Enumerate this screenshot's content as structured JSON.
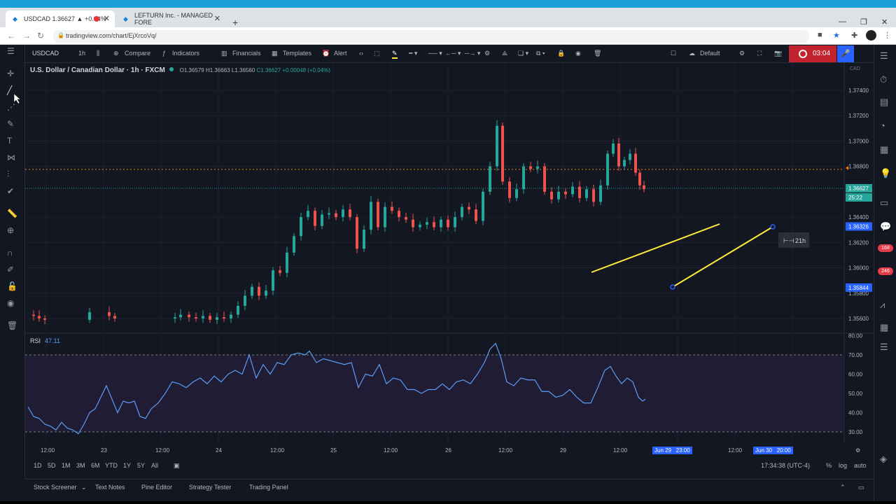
{
  "browser": {
    "tabs": [
      {
        "label": "USDCAD 1.36627 ▲ +0.04%"
      },
      {
        "label": "LEFTURN Inc. - MANAGED FORE"
      }
    ],
    "url": "tradingview.com/chart/EjXrcoVq/"
  },
  "toolbar": {
    "symbol": "USDCAD",
    "interval": "1h",
    "compare": "Compare",
    "indicators": "Indicators",
    "financials": "Financials",
    "templates": "Templates",
    "alert": "Alert",
    "layout": "Default",
    "rec_time": "03:04"
  },
  "legend": {
    "title": "U.S. Dollar / Canadian Dollar · 1h · FXCM",
    "open": "O1.36579",
    "high": "H1.36663",
    "low": "L1.36560",
    "close": "C1.36627 +0.00048 (+0.04%)"
  },
  "rsi": {
    "label": "RSI",
    "value": "47.11",
    "levels": [
      "80.00",
      "70.00",
      "60.00",
      "50.00",
      "40.00",
      "30.00"
    ]
  },
  "price_axis": {
    "currency": "CAD",
    "ticks": [
      "1.37400",
      "1.37200",
      "1.37000",
      "1.36800",
      "1.36400",
      "1.36200",
      "1.36000",
      "1.35800",
      "1.35600"
    ],
    "current_price": "1.36627",
    "countdown": "25:22",
    "mark1": "1.36326",
    "mark2": "1.35844"
  },
  "measure_label": "21h",
  "time_axis": {
    "ticks": [
      "12:00",
      "23",
      "12:00",
      "24",
      "12:00",
      "25",
      "12:00",
      "26",
      "12:00",
      "29",
      "12:00",
      "12:00"
    ],
    "highlight1": "Jun 29   23:00",
    "highlight2": "Jun 30   20:00"
  },
  "ranges": [
    "1D",
    "5D",
    "1M",
    "3M",
    "6M",
    "YTD",
    "1Y",
    "5Y",
    "All"
  ],
  "clock": "17:34:38 (UTC-4)",
  "scale_opts": [
    "%",
    "log",
    "auto"
  ],
  "bottom_tabs": [
    "Stock Screener",
    "Text Notes",
    "Pine Editor",
    "Strategy Tester",
    "Trading Panel"
  ],
  "right_badges": [
    "168",
    "246"
  ],
  "colors": {
    "up": "#26a69a",
    "down": "#ef5350",
    "rsi": "#5b9cf6",
    "drawing": "#ffeb3b",
    "accent": "#2962ff"
  }
}
